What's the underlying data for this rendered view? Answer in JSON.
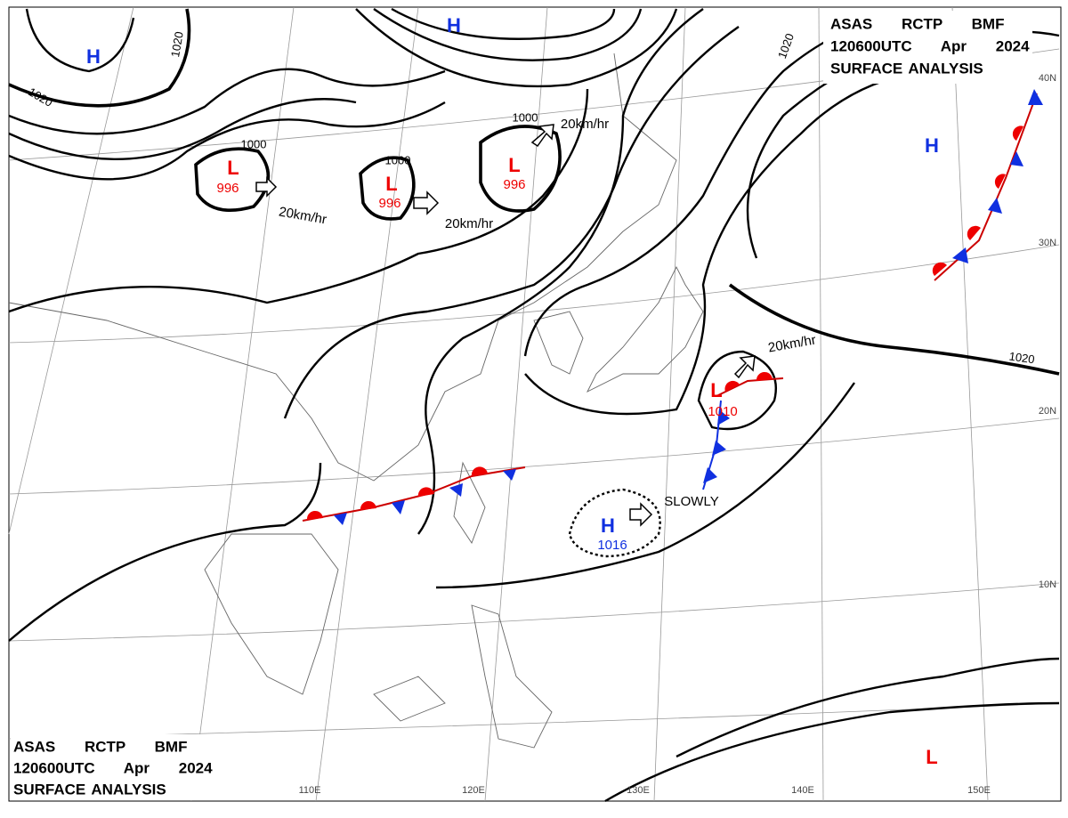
{
  "header_top": [
    "ASAS RCTP BMF",
    "120600UTC Apr 2024",
    "SURFACE ANALYSIS"
  ],
  "header_bottom": [
    "ASAS RCTP BMF",
    "120600UTC Apr 2024",
    "SURFACE ANALYSIS"
  ],
  "systems": [
    {
      "symbol": "H"
    },
    {
      "symbol": "H"
    },
    {
      "symbol": "L",
      "pressure": "996"
    },
    {
      "symbol": "L",
      "pressure": "996"
    },
    {
      "symbol": "L",
      "pressure": "996"
    },
    {
      "symbol": "H"
    },
    {
      "symbol": "L",
      "pressure": "1010"
    },
    {
      "symbol": "H",
      "pressure": "1016"
    },
    {
      "symbol": "L"
    }
  ],
  "isobar_labels": [
    "1020",
    "1020",
    "1020",
    "1020",
    "1000",
    "1000",
    "1000"
  ],
  "motion_labels": [
    "20km/hr",
    "20km/hr",
    "20km/hr",
    "20km/hr",
    "SLOWLY"
  ],
  "latitude_labels": [
    "40N",
    "30N",
    "20N",
    "10N"
  ],
  "longitude_labels": [
    "110E",
    "120E",
    "130E",
    "140E",
    "150E"
  ]
}
